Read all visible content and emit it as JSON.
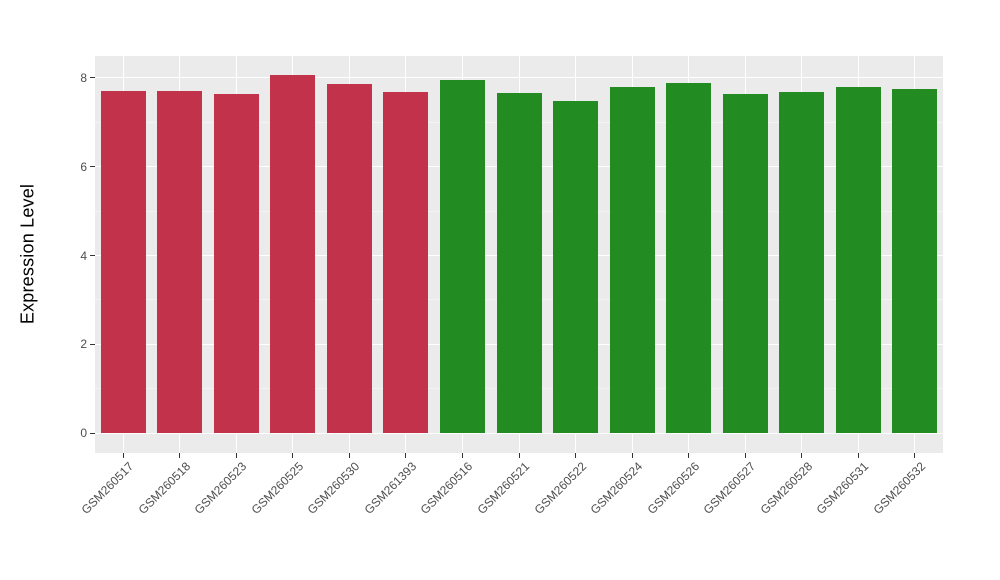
{
  "theme": {
    "background": "#FFFFFF",
    "panel_bg": "#EBEBEB",
    "grid_major": "#FFFFFF",
    "grid_minor": "#F3F3F3",
    "axis_text_color": "#4D4D4D",
    "axis_title_color": "#000000",
    "tick_mark_color": "#333333"
  },
  "chart_data": {
    "type": "bar",
    "title": "",
    "xlabel": "",
    "ylabel": "Expression Level",
    "categories": [
      "GSM260517",
      "GSM260518",
      "GSM260523",
      "GSM260525",
      "GSM260530",
      "GSM261393",
      "GSM260516",
      "GSM260521",
      "GSM260522",
      "GSM260524",
      "GSM260526",
      "GSM260527",
      "GSM260528",
      "GSM260531",
      "GSM260532"
    ],
    "values": [
      7.7,
      7.7,
      7.63,
      8.07,
      7.85,
      7.67,
      7.95,
      7.65,
      7.47,
      7.8,
      7.88,
      7.63,
      7.68,
      7.79,
      7.74
    ],
    "bar_groups": [
      "group1",
      "group1",
      "group1",
      "group1",
      "group1",
      "group1",
      "group2",
      "group2",
      "group2",
      "group2",
      "group2",
      "group2",
      "group2",
      "group2",
      "group2"
    ],
    "group_colors": {
      "group1": "#C2334B",
      "group2": "#228B22"
    },
    "ylim": [
      -0.4,
      8.49
    ],
    "y_ticks": [
      0,
      2,
      4,
      6,
      8
    ],
    "y_minor_ticks": [
      1,
      3,
      5,
      7
    ],
    "grid": "on",
    "legend": "none",
    "x_label_rotation_deg": 45
  }
}
